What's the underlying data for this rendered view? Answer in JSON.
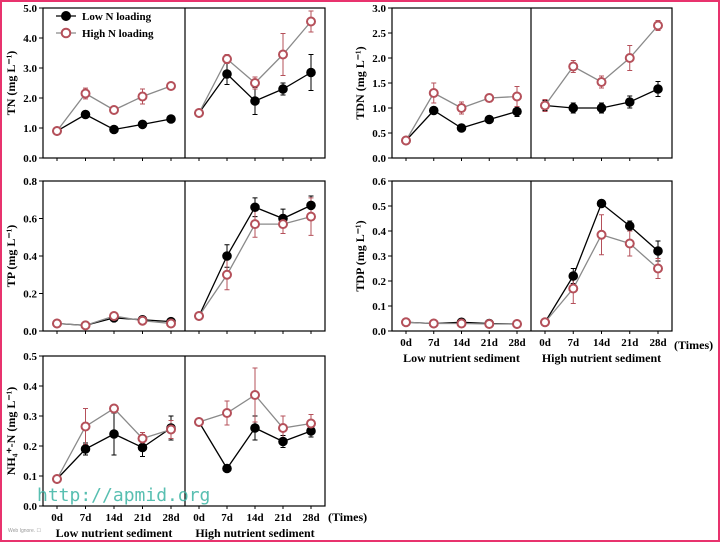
{
  "colors": {
    "low": "#000000",
    "high": "#b5505a",
    "high_fill": "#ffffff",
    "line_gray": "#8a8a8a",
    "border": "#e8336d"
  },
  "legend": {
    "low": "Low N loading",
    "high": "High N loading"
  },
  "watermark": "http://apmid.org",
  "footer_tiny": "Web Ignore. ☐",
  "chart_data": [
    {
      "type": "line",
      "id": "tn",
      "ylabel": "TN (mg L⁻¹)",
      "ylim": [
        0,
        5
      ],
      "yticks": [
        "0.0",
        "1.0",
        "2.0",
        "3.0",
        "4.0",
        "5.0"
      ],
      "x": [
        "0d",
        "7d",
        "14d",
        "21d",
        "28d"
      ],
      "low_sediment": {
        "series": [
          {
            "name": "Low N loading",
            "values": [
              0.9,
              1.45,
              0.95,
              1.12,
              1.3
            ],
            "err": [
              0.05,
              0.08,
              0.06,
              0.06,
              0.06
            ]
          },
          {
            "name": "High N loading",
            "values": [
              0.9,
              2.15,
              1.6,
              2.05,
              2.4
            ],
            "err": [
              0.05,
              0.18,
              0.08,
              0.25,
              0.08
            ]
          }
        ]
      },
      "high_sediment": {
        "series": [
          {
            "name": "Low N loading",
            "values": [
              1.5,
              2.8,
              1.9,
              2.3,
              2.85
            ],
            "err": [
              0.05,
              0.35,
              0.45,
              0.2,
              0.6
            ]
          },
          {
            "name": "High N loading",
            "values": [
              1.5,
              3.3,
              2.5,
              3.45,
              4.55
            ],
            "err": [
              0.05,
              0.15,
              0.2,
              0.7,
              0.35
            ]
          }
        ]
      }
    },
    {
      "type": "line",
      "id": "tdn",
      "ylabel": "TDN (mg L⁻¹)",
      "ylim": [
        0,
        3
      ],
      "yticks": [
        "0.0",
        "0.5",
        "1.0",
        "1.5",
        "2.0",
        "2.5",
        "3.0"
      ],
      "x": [
        "0d",
        "7d",
        "14d",
        "21d",
        "28d"
      ],
      "low_sediment": {
        "series": [
          {
            "name": "Low N loading",
            "values": [
              0.35,
              0.95,
              0.6,
              0.77,
              0.93
            ],
            "err": [
              0.02,
              0.04,
              0.03,
              0.05,
              0.1
            ]
          },
          {
            "name": "High N loading",
            "values": [
              0.35,
              1.3,
              1.0,
              1.2,
              1.23
            ],
            "err": [
              0.02,
              0.2,
              0.12,
              0.08,
              0.2
            ]
          }
        ]
      },
      "high_sediment": {
        "series": [
          {
            "name": "Low N loading",
            "values": [
              1.05,
              1.0,
              1.0,
              1.12,
              1.38
            ],
            "err": [
              0.1,
              0.1,
              0.1,
              0.12,
              0.15
            ]
          },
          {
            "name": "High N loading",
            "values": [
              1.05,
              1.83,
              1.52,
              2.0,
              2.65
            ],
            "err": [
              0.12,
              0.12,
              0.12,
              0.25,
              0.1
            ]
          }
        ]
      }
    },
    {
      "type": "line",
      "id": "tp",
      "ylabel": "TP (mg L⁻¹)",
      "ylim": [
        0,
        0.8
      ],
      "yticks": [
        "0.0",
        "0.2",
        "0.4",
        "0.6",
        "0.8"
      ],
      "x": [
        "0d",
        "7d",
        "14d",
        "21d",
        "28d"
      ],
      "low_sediment": {
        "series": [
          {
            "name": "Low N loading",
            "values": [
              0.04,
              0.03,
              0.07,
              0.06,
              0.05
            ],
            "err": [
              0.005,
              0.005,
              0.01,
              0.01,
              0.01
            ]
          },
          {
            "name": "High N loading",
            "values": [
              0.04,
              0.03,
              0.08,
              0.055,
              0.04
            ],
            "err": [
              0.005,
              0.005,
              0.01,
              0.01,
              0.01
            ]
          }
        ]
      },
      "high_sediment": {
        "series": [
          {
            "name": "Low N loading",
            "values": [
              0.08,
              0.4,
              0.66,
              0.6,
              0.67
            ],
            "err": [
              0.005,
              0.06,
              0.05,
              0.05,
              0.05
            ]
          },
          {
            "name": "High N loading",
            "values": [
              0.08,
              0.3,
              0.57,
              0.57,
              0.61
            ],
            "err": [
              0.005,
              0.08,
              0.07,
              0.05,
              0.1
            ]
          }
        ]
      }
    },
    {
      "type": "line",
      "id": "tdp",
      "ylabel": "TDP (mg L⁻¹)",
      "ylim": [
        0,
        0.6
      ],
      "yticks": [
        "0.0",
        "0.1",
        "0.2",
        "0.3",
        "0.4",
        "0.5",
        "0.6"
      ],
      "x": [
        "0d",
        "7d",
        "14d",
        "21d",
        "28d"
      ],
      "low_sediment": {
        "series": [
          {
            "name": "Low N loading",
            "values": [
              0.035,
              0.03,
              0.035,
              0.03,
              0.028
            ],
            "err": [
              0.003,
              0.003,
              0.003,
              0.003,
              0.003
            ]
          },
          {
            "name": "High N loading",
            "values": [
              0.035,
              0.03,
              0.03,
              0.028,
              0.028
            ],
            "err": [
              0.003,
              0.003,
              0.003,
              0.003,
              0.003
            ]
          }
        ]
      },
      "high_sediment": {
        "series": [
          {
            "name": "Low N loading",
            "values": [
              0.035,
              0.22,
              0.51,
              0.42,
              0.32
            ],
            "err": [
              0.003,
              0.03,
              0.01,
              0.02,
              0.04
            ]
          },
          {
            "name": "High N loading",
            "values": [
              0.035,
              0.17,
              0.385,
              0.35,
              0.25
            ],
            "err": [
              0.003,
              0.06,
              0.08,
              0.05,
              0.04
            ]
          }
        ]
      }
    },
    {
      "type": "line",
      "id": "nh4",
      "ylabel": "NH₄⁺-N (mg L⁻¹)",
      "ylim": [
        0,
        0.5
      ],
      "yticks": [
        "0.0",
        "0.1",
        "0.2",
        "0.3",
        "0.4",
        "0.5"
      ],
      "x": [
        "0d",
        "7d",
        "14d",
        "21d",
        "28d"
      ],
      "low_sediment": {
        "series": [
          {
            "name": "Low N loading",
            "values": [
              0.09,
              0.19,
              0.24,
              0.195,
              0.26
            ],
            "err": [
              0.01,
              0.02,
              0.07,
              0.03,
              0.04
            ]
          },
          {
            "name": "High N loading",
            "values": [
              0.09,
              0.265,
              0.325,
              0.225,
              0.255
            ],
            "err": [
              0.01,
              0.06,
              0.01,
              0.02,
              0.03
            ]
          }
        ]
      },
      "high_sediment": {
        "series": [
          {
            "name": "Low N loading",
            "values": [
              0.28,
              0.125,
              0.26,
              0.215,
              0.25
            ],
            "err": [
              0.005,
              0.005,
              0.04,
              0.02,
              0.02
            ]
          },
          {
            "name": "High N loading",
            "values": [
              0.28,
              0.31,
              0.37,
              0.26,
              0.275
            ],
            "err": [
              0.005,
              0.04,
              0.09,
              0.04,
              0.03
            ]
          }
        ]
      }
    }
  ],
  "xaxis_group_labels": {
    "low": "Low nutrient sediment",
    "high": "High nutrient sediment",
    "times": "(Times)"
  }
}
